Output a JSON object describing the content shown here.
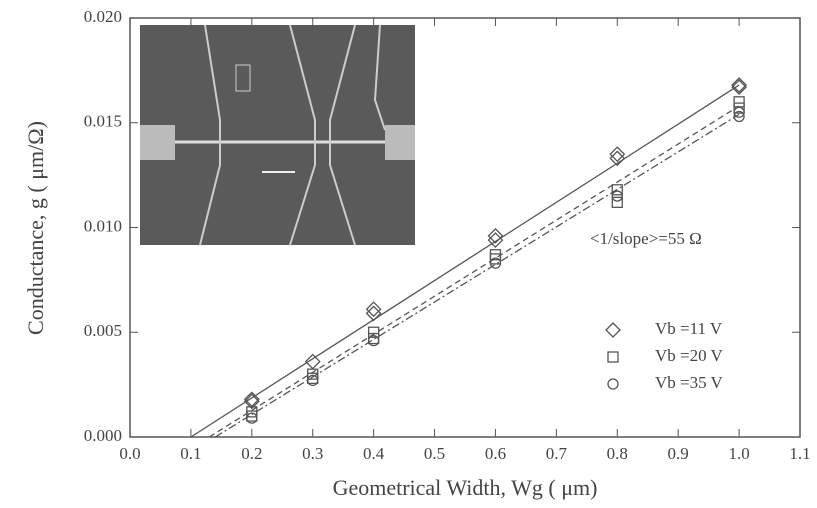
{
  "chart_data": {
    "type": "scatter",
    "xlabel": "Geometrical Width, Wg ( μm)",
    "ylabel": "Conductance, g ( μm/Ω)",
    "annotation": "<1/slope>=55 Ω",
    "xlim": [
      0,
      1.1
    ],
    "xticks": [
      {
        "value": 0,
        "label": "0.0"
      },
      0.1,
      0.2,
      0.3,
      0.4,
      0.5,
      0.6,
      0.7,
      0.8,
      0.9,
      {
        "value": 1,
        "label": "1.0"
      },
      1.1
    ],
    "ylim": [
      0,
      0.02
    ],
    "yticks": [
      {
        "value": 0,
        "label": "0.000"
      },
      0.005,
      {
        "value": 0.01,
        "label": "0.010"
      },
      0.015,
      {
        "value": 0.02,
        "label": "0.020"
      }
    ],
    "legend": "lower right",
    "series": [
      {
        "name": "Vb =11 V",
        "marker": "diamond",
        "color": "#555555",
        "x": [
          0.2,
          0.2,
          0.3,
          0.4,
          0.4,
          0.6,
          0.6,
          0.8,
          0.8,
          1,
          1
        ],
        "values": [
          0.0018,
          0.0017,
          0.0036,
          0.0061,
          0.0059,
          0.0096,
          0.0094,
          0.0135,
          0.0133,
          0.0168,
          0.0167
        ]
      },
      {
        "name": "Vb =20 V",
        "marker": "square",
        "color": "#555555",
        "x": [
          0.2,
          0.2,
          0.3,
          0.3,
          0.4,
          0.4,
          0.6,
          0.6,
          0.8,
          0.8,
          1,
          1
        ],
        "values": [
          0.0012,
          0.001,
          0.003,
          0.0028,
          0.005,
          0.0047,
          0.0087,
          0.0085,
          0.0118,
          0.0112,
          0.016,
          0.0157
        ]
      },
      {
        "name": "Vb =35 V",
        "marker": "circle",
        "color": "#555555",
        "x": [
          0.2,
          0.3,
          0.4,
          0.6,
          0.8,
          1,
          1
        ],
        "values": [
          0.0009,
          0.0027,
          0.0046,
          0.0083,
          0.0115,
          0.0155,
          0.0153
        ]
      }
    ],
    "fit_lines": [
      {
        "dash": "solid",
        "x": [
          0.1,
          1
        ],
        "values": [
          0,
          0.0168
        ]
      },
      {
        "dash": "dashed",
        "x": [
          0.13,
          1
        ],
        "values": [
          0,
          0.0158
        ]
      },
      {
        "dash": "dashdot",
        "x": [
          0.14,
          1
        ],
        "values": [
          0,
          0.0154
        ]
      }
    ]
  }
}
